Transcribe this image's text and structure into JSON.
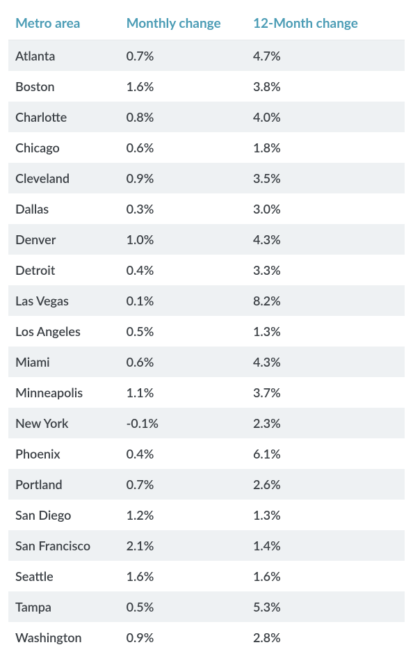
{
  "table": {
    "header_color": "#4b9cb5",
    "text_color": "#3a3f44",
    "row_alt_bg": "#eef1f3",
    "row_bg": "#ffffff",
    "columns": [
      {
        "label": "Metro area"
      },
      {
        "label": "Monthly change"
      },
      {
        "label": "12-Month change"
      }
    ],
    "rows": [
      {
        "metro": "Atlanta",
        "monthly": "0.7%",
        "yearly": "4.7%"
      },
      {
        "metro": "Boston",
        "monthly": "1.6%",
        "yearly": "3.8%"
      },
      {
        "metro": "Charlotte",
        "monthly": "0.8%",
        "yearly": "4.0%"
      },
      {
        "metro": "Chicago",
        "monthly": "0.6%",
        "yearly": "1.8%"
      },
      {
        "metro": "Cleveland",
        "monthly": "0.9%",
        "yearly": "3.5%"
      },
      {
        "metro": "Dallas",
        "monthly": "0.3%",
        "yearly": "3.0%"
      },
      {
        "metro": "Denver",
        "monthly": "1.0%",
        "yearly": "4.3%"
      },
      {
        "metro": "Detroit",
        "monthly": "0.4%",
        "yearly": "3.3%"
      },
      {
        "metro": "Las Vegas",
        "monthly": "0.1%",
        "yearly": "8.2%"
      },
      {
        "metro": "Los Angeles",
        "monthly": "0.5%",
        "yearly": "1.3%"
      },
      {
        "metro": "Miami",
        "monthly": "0.6%",
        "yearly": "4.3%"
      },
      {
        "metro": "Minneapolis",
        "monthly": "1.1%",
        "yearly": "3.7%"
      },
      {
        "metro": "New York",
        "monthly": "-0.1%",
        "yearly": "2.3%"
      },
      {
        "metro": "Phoenix",
        "monthly": "0.4%",
        "yearly": "6.1%"
      },
      {
        "metro": "Portland",
        "monthly": "0.7%",
        "yearly": "2.6%"
      },
      {
        "metro": "San Diego",
        "monthly": "1.2%",
        "yearly": "1.3%"
      },
      {
        "metro": "San Francisco",
        "monthly": "2.1%",
        "yearly": "1.4%"
      },
      {
        "metro": "Seattle",
        "monthly": "1.6%",
        "yearly": "1.6%"
      },
      {
        "metro": "Tampa",
        "monthly": "0.5%",
        "yearly": "5.3%"
      },
      {
        "metro": "Washington",
        "monthly": "0.9%",
        "yearly": "2.8%"
      }
    ]
  }
}
